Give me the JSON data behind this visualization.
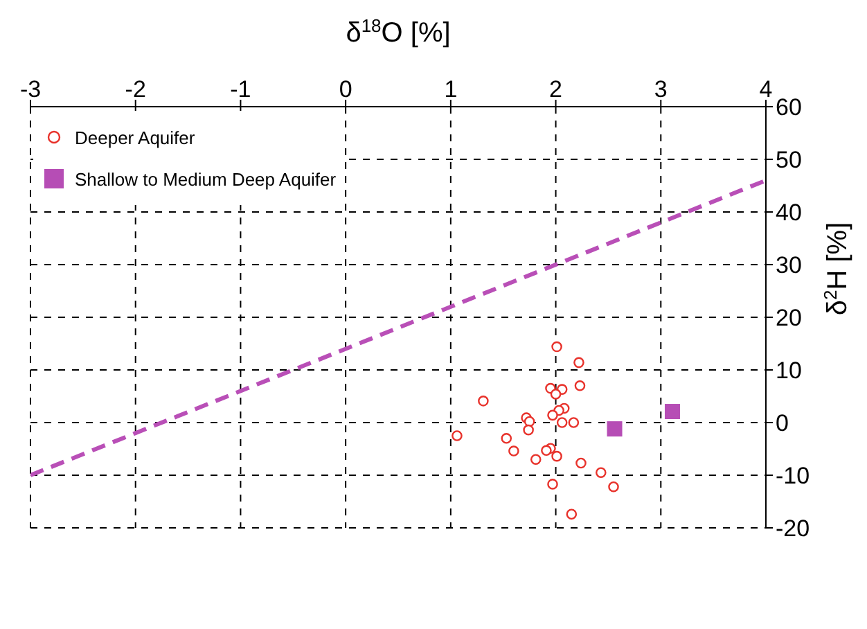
{
  "chart_data": {
    "type": "scatter",
    "xlabel": "δ$^{18}$O [%]",
    "ylabel": "δ$^{2}$H [%]",
    "xlim": [
      -3,
      4
    ],
    "xticks": [
      -3,
      -2,
      -1,
      0,
      1,
      2,
      3,
      4
    ],
    "ylim": [
      -20,
      60
    ],
    "yticks": [
      -20,
      -10,
      0,
      10,
      20,
      30,
      40,
      50,
      60
    ],
    "grid": true,
    "legend": "top left",
    "series": [
      {
        "name": "Deeper Aquifer",
        "marker": "circle",
        "color": "#e8322b",
        "x": [
          2.01,
          2.22,
          1.95,
          2.06,
          2.23,
          2.0,
          1.31,
          2.08,
          2.03,
          1.97,
          1.72,
          1.75,
          2.06,
          2.17,
          1.74,
          1.06,
          1.53,
          1.6,
          1.95,
          1.91,
          2.01,
          1.81,
          2.24,
          2.43,
          2.55,
          1.97,
          2.15
        ],
        "values": [
          14.4,
          11.4,
          6.5,
          6.3,
          7.0,
          5.4,
          4.1,
          2.7,
          2.3,
          1.4,
          0.9,
          0.2,
          0,
          0,
          -1.4,
          -2.5,
          -3.0,
          -5.4,
          -4.9,
          -5.3,
          -6.4,
          -7.0,
          -7.7,
          -9.5,
          -12.2,
          -11.7,
          -17.4
        ]
      },
      {
        "name": "Shallow to Medium Deep Aquifer",
        "marker": "square",
        "color": "#b64db5",
        "x": [
          2.56,
          3.11
        ],
        "values": [
          -1.2,
          2.1
        ]
      },
      {
        "type": "line",
        "line_style": "dashed",
        "marker": "none",
        "color": "#b94fb7",
        "x": [
          -3,
          4
        ],
        "values": [
          -10,
          46
        ]
      }
    ]
  }
}
